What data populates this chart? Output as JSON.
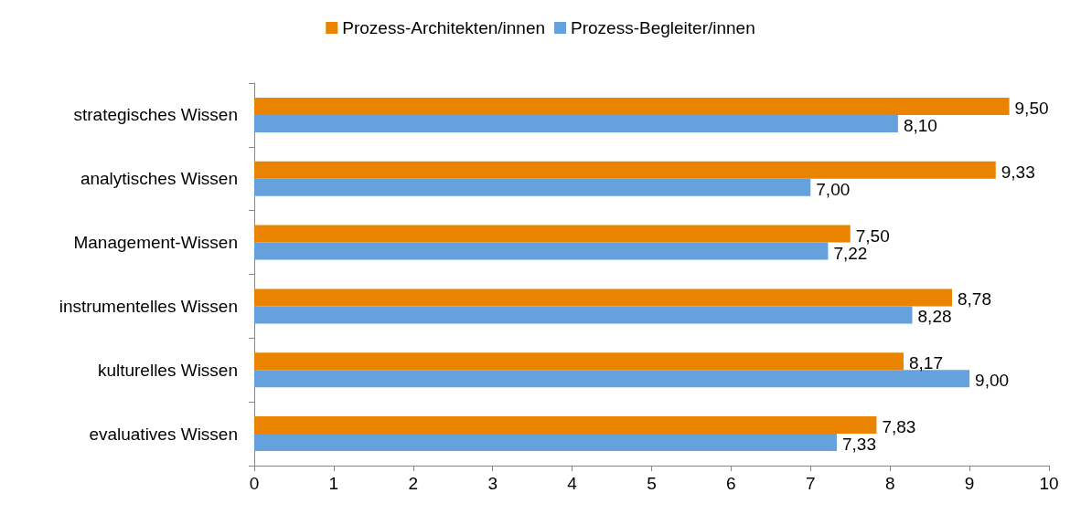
{
  "chart_data": {
    "type": "bar",
    "orientation": "horizontal",
    "categories": [
      "strategisches Wissen",
      "analytisches Wissen",
      "Management-Wissen",
      "instrumentelles Wissen",
      "kulturelles Wissen",
      "evaluatives Wissen"
    ],
    "series": [
      {
        "name": "Prozess-Architekten/innen",
        "color": "#e98300",
        "values": [
          9.5,
          9.33,
          7.5,
          8.78,
          8.17,
          7.83
        ],
        "value_labels": [
          "9,50",
          "9,33",
          "7,50",
          "8,78",
          "8,17",
          "7,83"
        ]
      },
      {
        "name": "Prozess-Begleiter/innen",
        "color": "#65a2dd",
        "values": [
          8.1,
          7.0,
          7.22,
          8.28,
          9.0,
          7.33
        ],
        "value_labels": [
          "8,10",
          "7,00",
          "7,22",
          "8,28",
          "9,00",
          "7,33"
        ]
      }
    ],
    "xlim": [
      0,
      10
    ],
    "xticks": [
      0,
      1,
      2,
      3,
      4,
      5,
      6,
      7,
      8,
      9,
      10
    ],
    "grid": false,
    "legend": "top"
  }
}
